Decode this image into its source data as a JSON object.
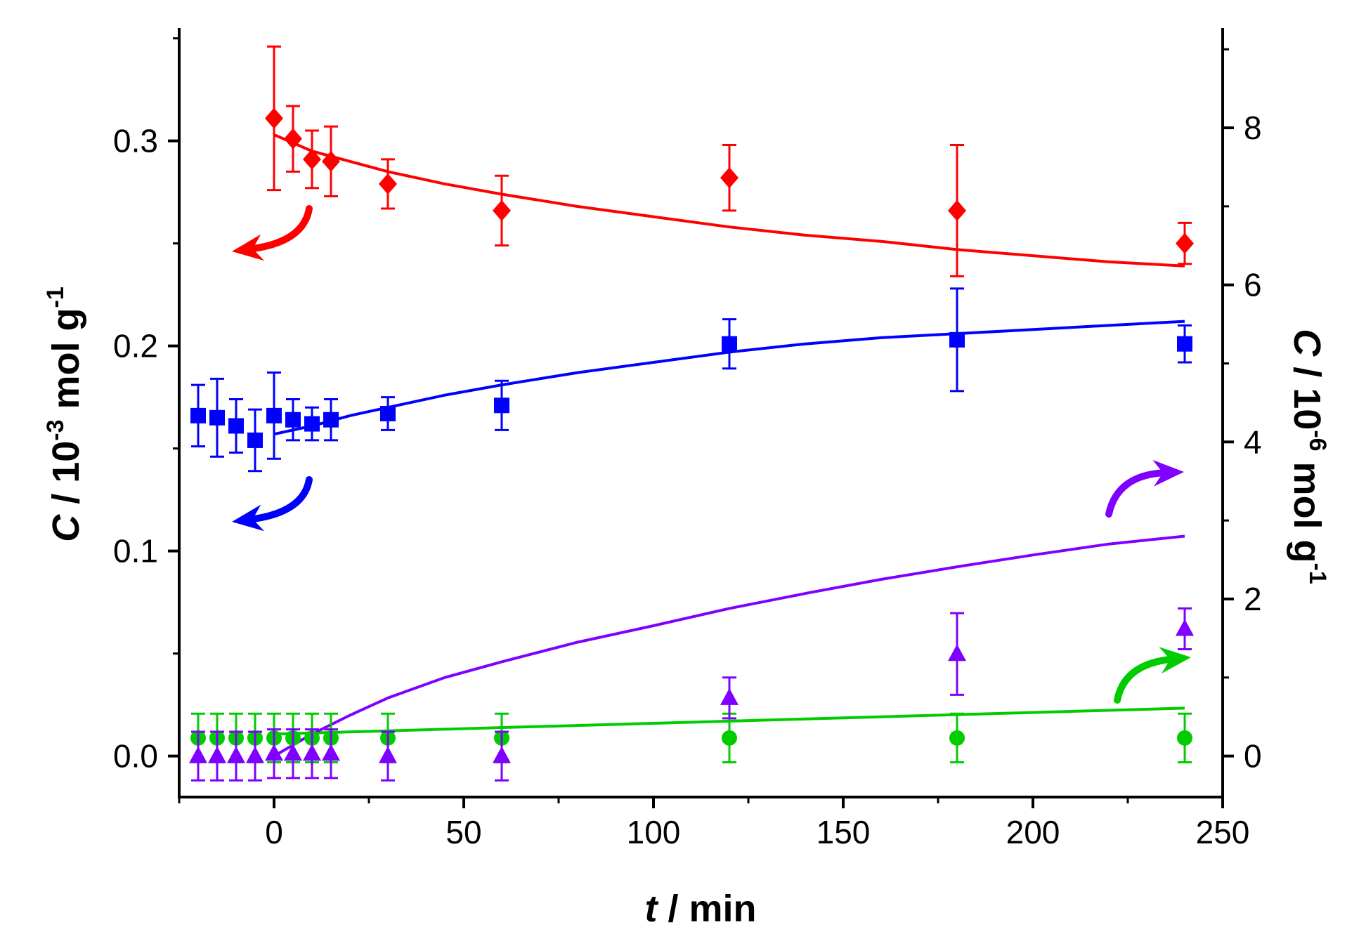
{
  "chart_data": {
    "type": "scatter",
    "title": "",
    "xlabel": {
      "var": "t",
      "rest": " / min"
    },
    "ylabel_left": {
      "var": "C",
      "mid": " / 10",
      "sup": "-3",
      "rest": " mol g",
      "sup2": "-1"
    },
    "ylabel_right": {
      "var": "C",
      "mid": " / 10",
      "sup": "-6",
      "rest": " mol g",
      "sup2": "-1"
    },
    "xlim": [
      -25,
      250
    ],
    "ylim_left": [
      -0.02,
      0.355
    ],
    "ylim_right": [
      -0.5222,
      9.27
    ],
    "xticks": [
      0,
      50,
      100,
      150,
      200,
      250
    ],
    "xtick_labels": [
      "0",
      "50",
      "100",
      "150",
      "200",
      "250"
    ],
    "yticks_left": [
      0.0,
      0.1,
      0.2,
      0.3
    ],
    "ytick_labels_left": [
      "0.0",
      "0.1",
      "0.2",
      "0.3"
    ],
    "yticks_right": [
      0,
      2,
      4,
      6,
      8
    ],
    "ytick_labels_right": [
      "0",
      "2",
      "4",
      "6",
      "8"
    ],
    "grid": false,
    "series": [
      {
        "name": "red-diamond",
        "axis": "left",
        "marker": "diamond",
        "color": "#ff0000",
        "x": [
          0,
          5,
          10,
          15,
          30,
          60,
          120,
          180,
          240
        ],
        "y": [
          0.311,
          0.301,
          0.291,
          0.29,
          0.279,
          0.266,
          0.282,
          0.266,
          0.25
        ],
        "err": [
          0.035,
          0.016,
          0.014,
          0.017,
          0.012,
          0.017,
          0.016,
          0.032,
          0.01
        ],
        "fit": {
          "x": [
            0,
            10,
            20,
            30,
            45,
            60,
            80,
            100,
            120,
            140,
            160,
            180,
            200,
            220,
            240
          ],
          "y": [
            0.303,
            0.295,
            0.29,
            0.285,
            0.279,
            0.274,
            0.268,
            0.263,
            0.258,
            0.254,
            0.251,
            0.247,
            0.244,
            0.241,
            0.239
          ]
        }
      },
      {
        "name": "blue-square",
        "axis": "left",
        "marker": "square",
        "color": "#0000ff",
        "x": [
          -20,
          -15,
          -10,
          -5,
          0,
          5,
          10,
          15,
          30,
          60,
          120,
          180,
          240
        ],
        "y": [
          0.166,
          0.165,
          0.161,
          0.154,
          0.166,
          0.164,
          0.162,
          0.164,
          0.167,
          0.171,
          0.201,
          0.203,
          0.201
        ],
        "err": [
          0.015,
          0.019,
          0.013,
          0.015,
          0.021,
          0.01,
          0.008,
          0.01,
          0.008,
          0.012,
          0.012,
          0.025,
          0.009
        ],
        "fit": {
          "x": [
            0,
            10,
            20,
            30,
            45,
            60,
            80,
            100,
            120,
            140,
            160,
            180,
            200,
            220,
            240
          ],
          "y": [
            0.157,
            0.161,
            0.166,
            0.17,
            0.176,
            0.181,
            0.187,
            0.192,
            0.197,
            0.201,
            0.204,
            0.206,
            0.208,
            0.21,
            0.212
          ]
        }
      },
      {
        "name": "green-circle",
        "axis": "right",
        "marker": "circle",
        "color": "#00cc00",
        "x": [
          -20,
          -15,
          -10,
          -5,
          0,
          5,
          10,
          15,
          30,
          60,
          120,
          180,
          240
        ],
        "y": [
          0.23,
          0.23,
          0.23,
          0.23,
          0.23,
          0.23,
          0.23,
          0.23,
          0.23,
          0.23,
          0.23,
          0.23,
          0.23
        ],
        "err": [
          0.31,
          0.31,
          0.31,
          0.31,
          0.31,
          0.31,
          0.31,
          0.31,
          0.31,
          0.31,
          0.31,
          0.31,
          0.31
        ],
        "fit": {
          "x": [
            0,
            240
          ],
          "y": [
            0.28,
            0.61
          ]
        }
      },
      {
        "name": "purple-triangle",
        "axis": "right",
        "marker": "triangle",
        "color": "#8000ff",
        "x": [
          -20,
          -15,
          -10,
          -5,
          0,
          5,
          10,
          15,
          30,
          60,
          120,
          180,
          240
        ],
        "y": [
          0.0,
          0.0,
          0.0,
          0.0,
          0.03,
          0.03,
          0.03,
          0.03,
          0.0,
          0.0,
          0.74,
          1.3,
          1.62
        ],
        "err": [
          0.31,
          0.31,
          0.31,
          0.31,
          0.31,
          0.31,
          0.31,
          0.31,
          0.31,
          0.31,
          0.26,
          0.52,
          0.26
        ],
        "fit": {
          "x": [
            0,
            10,
            20,
            30,
            45,
            60,
            80,
            100,
            120,
            140,
            160,
            180,
            200,
            220,
            240
          ],
          "y": [
            0.0,
            0.28,
            0.52,
            0.74,
            1.0,
            1.2,
            1.45,
            1.66,
            1.88,
            2.07,
            2.25,
            2.41,
            2.56,
            2.7,
            2.8
          ]
        }
      }
    ],
    "annotations": [
      {
        "name": "red-axis-arrow",
        "points_to": "left axis",
        "color": "#ff0000"
      },
      {
        "name": "blue-axis-arrow",
        "points_to": "left axis",
        "color": "#0000ff"
      },
      {
        "name": "purple-axis-arrow",
        "points_to": "right axis",
        "color": "#8000ff"
      },
      {
        "name": "green-axis-arrow",
        "points_to": "right axis",
        "color": "#00cc00"
      }
    ]
  }
}
